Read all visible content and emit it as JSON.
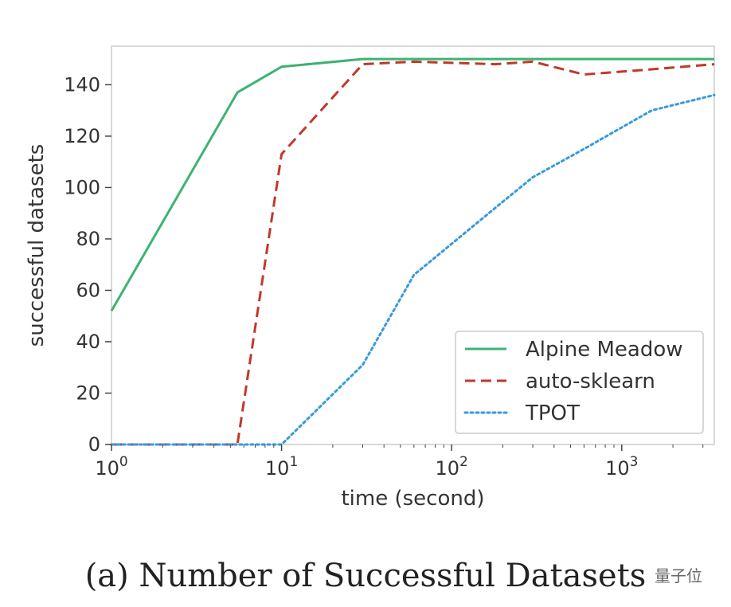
{
  "caption": "(a) Number of Successful Datasets",
  "watermark": "量子位",
  "chart_data": {
    "type": "line",
    "title": "",
    "xlabel": "time (second)",
    "ylabel": "successful datasets",
    "xscale": "log",
    "xlim": [
      1,
      3500
    ],
    "ylim": [
      0,
      155
    ],
    "x_ticks": [
      1,
      10,
      100,
      1000
    ],
    "x_tick_labels": [
      {
        "base": "10",
        "exp": "0"
      },
      {
        "base": "10",
        "exp": "1"
      },
      {
        "base": "10",
        "exp": "2"
      },
      {
        "base": "10",
        "exp": "3"
      }
    ],
    "y_ticks": [
      0,
      20,
      40,
      60,
      80,
      100,
      120,
      140
    ],
    "y_tick_labels": [
      "0",
      "20",
      "40",
      "60",
      "80",
      "100",
      "120",
      "140"
    ],
    "grid": false,
    "legend_position": "bottom-right",
    "series": [
      {
        "name": "Alpine Meadow",
        "color": "#3cb371",
        "style": "solid",
        "points": [
          [
            1,
            52
          ],
          [
            5.5,
            137
          ],
          [
            10,
            147
          ],
          [
            30,
            150
          ],
          [
            100,
            150
          ],
          [
            300,
            150
          ],
          [
            1000,
            150
          ],
          [
            3500,
            150
          ]
        ]
      },
      {
        "name": "auto-sklearn",
        "color": "#c0392b",
        "style": "dashed",
        "points": [
          [
            1,
            0
          ],
          [
            5.5,
            0
          ],
          [
            10,
            113
          ],
          [
            30,
            148
          ],
          [
            60,
            149
          ],
          [
            180,
            148
          ],
          [
            300,
            149
          ],
          [
            600,
            144
          ],
          [
            1500,
            146
          ],
          [
            3500,
            148
          ]
        ]
      },
      {
        "name": "TPOT",
        "color": "#3a9ad9",
        "style": "dotted",
        "points": [
          [
            1,
            0
          ],
          [
            10,
            0
          ],
          [
            30,
            31
          ],
          [
            60,
            66
          ],
          [
            180,
            92
          ],
          [
            300,
            104
          ],
          [
            600,
            115
          ],
          [
            1500,
            130
          ],
          [
            3500,
            136
          ]
        ]
      }
    ]
  }
}
